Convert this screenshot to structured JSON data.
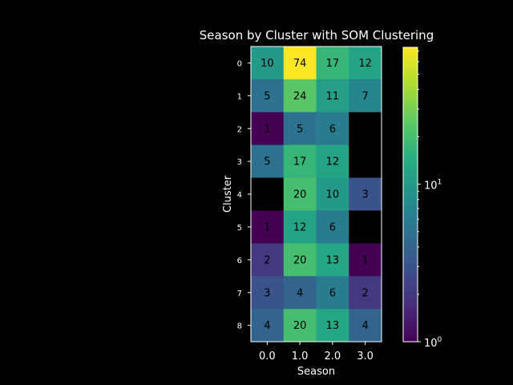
{
  "chart_data": {
    "type": "heatmap",
    "title": "Season by Cluster with SOM Clustering",
    "xlabel": "Season",
    "ylabel": "Cluster",
    "x_categories": [
      "0.0",
      "1.0",
      "2.0",
      "3.0"
    ],
    "y_categories": [
      "0",
      "1",
      "2",
      "3",
      "4",
      "5",
      "6",
      "7",
      "8"
    ],
    "values": [
      [
        10,
        74,
        17,
        12
      ],
      [
        5,
        24,
        11,
        7
      ],
      [
        1,
        5,
        6,
        null
      ],
      [
        5,
        17,
        12,
        null
      ],
      [
        null,
        20,
        10,
        3
      ],
      [
        1,
        12,
        6,
        null
      ],
      [
        2,
        20,
        13,
        1
      ],
      [
        3,
        4,
        6,
        2
      ],
      [
        4,
        20,
        13,
        4
      ]
    ],
    "colorbar": {
      "scale": "log",
      "colormap": "viridis",
      "range": [
        1,
        74
      ],
      "tick_labels": [
        {
          "base": "10",
          "exp": "0",
          "value": 1
        },
        {
          "base": "10",
          "exp": "1",
          "value": 10
        }
      ]
    },
    "missing_color": "#000000",
    "colors": {
      "background": "#000000",
      "text": "#ffffff",
      "cell_text": "#000000",
      "frame": "#ffffff"
    }
  }
}
